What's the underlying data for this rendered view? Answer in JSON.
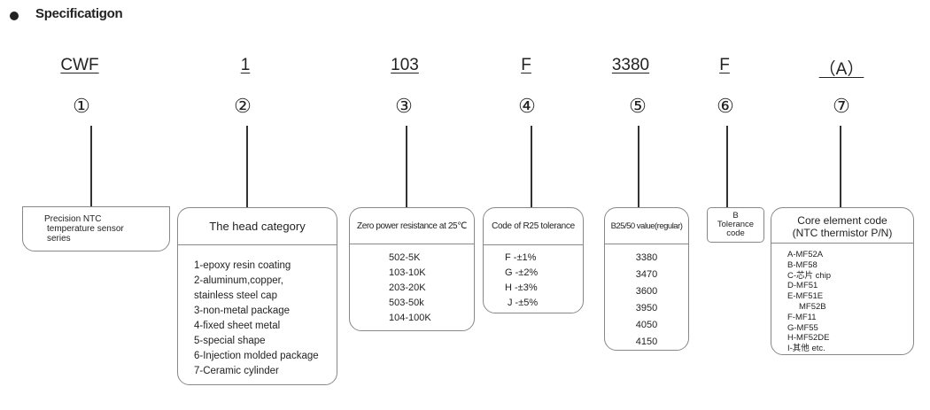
{
  "title": "Specificatigon",
  "columns": [
    {
      "code": "CWF",
      "num": "①"
    },
    {
      "code": "1",
      "num": "②"
    },
    {
      "code": "103",
      "num": "③"
    },
    {
      "code": "F",
      "num": "④"
    },
    {
      "code": "3380",
      "num": "⑤"
    },
    {
      "code": "F",
      "num": "⑥"
    },
    {
      "code": "（A）",
      "num": "⑦"
    }
  ],
  "box1": {
    "lines": [
      "Precision NTC",
      "temperature sensor",
      "series"
    ]
  },
  "box2": {
    "header": "The head category",
    "items": [
      "1-epoxy resin coating",
      "2-aluminum,copper,",
      "stainless steel cap",
      "3-non-metal package",
      "4-fixed sheet metal",
      "5-special shape",
      "6-Injection molded package",
      "7-Ceramic cylinder"
    ]
  },
  "box3": {
    "header": "Zero power resistance at 25℃",
    "items": [
      "502-5K",
      "103-10K",
      "203-20K",
      "503-50k",
      "104-100K"
    ]
  },
  "box4": {
    "header": "Code of R25 tolerance",
    "items": [
      "F -±1%",
      "G -±2%",
      "H -±3%",
      "J -±5%"
    ]
  },
  "box5": {
    "header": "B25/50 value(regular)",
    "items": [
      "3380",
      "3470",
      "3600",
      "3950",
      "4050",
      "4150"
    ]
  },
  "box6": {
    "lines": [
      "B",
      "Tolerance",
      "code"
    ]
  },
  "box7": {
    "header": [
      "Core element code",
      "(NTC thermistor P/N)"
    ],
    "items": [
      "A-MF52A",
      "B-MF58",
      "C-芯片 chip",
      "D-MF51",
      "E-MF51E",
      "MF52B",
      "F-MF11",
      "G-MF55",
      "H-MF52DE",
      "I-其他 etc."
    ]
  }
}
